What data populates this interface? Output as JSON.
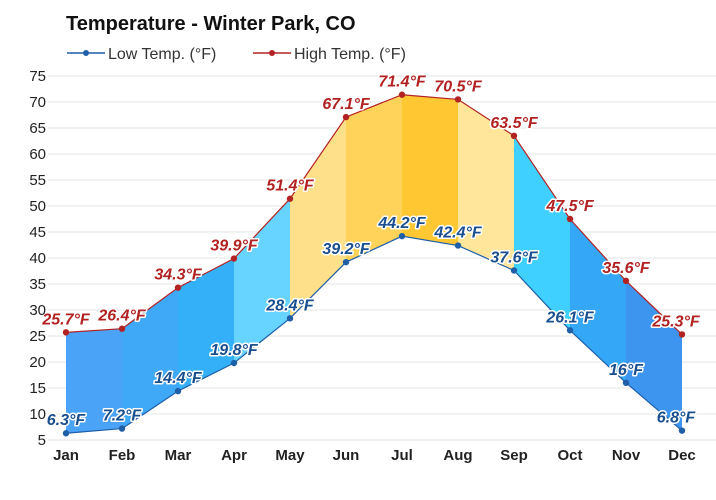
{
  "chart_data": {
    "type": "area",
    "title": "Temperature - Winter Park, CO",
    "xlabel": "",
    "ylabel": "",
    "categories": [
      "Jan",
      "Feb",
      "Mar",
      "Apr",
      "May",
      "Jun",
      "Jul",
      "Aug",
      "Sep",
      "Oct",
      "Nov",
      "Dec"
    ],
    "ylim": [
      5,
      75
    ],
    "yticks": [
      5,
      10,
      15,
      20,
      25,
      30,
      35,
      40,
      45,
      50,
      55,
      60,
      65,
      70,
      75
    ],
    "grid": true,
    "legend_position": "top-left",
    "series": [
      {
        "name": "Low Temp. (°F)",
        "values": [
          6.3,
          7.2,
          14.4,
          19.8,
          28.4,
          39.2,
          44.2,
          42.4,
          37.6,
          26.1,
          16,
          6.8
        ],
        "labels": [
          "6.3°F",
          "7.2°F",
          "14.4°F",
          "19.8°F",
          "28.4°F",
          "39.2°F",
          "44.2°F",
          "42.4°F",
          "37.6°F",
          "26.1°F",
          "16°F",
          "6.8°F"
        ],
        "color": "#1f5fa8"
      },
      {
        "name": "High Temp. (°F)",
        "values": [
          25.7,
          26.4,
          34.3,
          39.9,
          51.4,
          67.1,
          71.4,
          70.5,
          63.5,
          47.5,
          35.6,
          25.3
        ],
        "labels": [
          "25.7°F",
          "26.4°F",
          "34.3°F",
          "39.9°F",
          "51.4°F",
          "67.1°F",
          "71.4°F",
          "70.5°F",
          "63.5°F",
          "47.5°F",
          "35.6°F",
          "25.3°F"
        ],
        "color": "#b22222"
      }
    ],
    "band_colors": [
      "#4aa3f7",
      "#3fa9f7",
      "#33b0f8",
      "#66d4ff",
      "#ffe08a",
      "#ffd35a",
      "#ffc832",
      "#ffe69a",
      "#3fd0ff",
      "#34a8f7",
      "#3d95f0",
      "#4a8cf0"
    ]
  }
}
